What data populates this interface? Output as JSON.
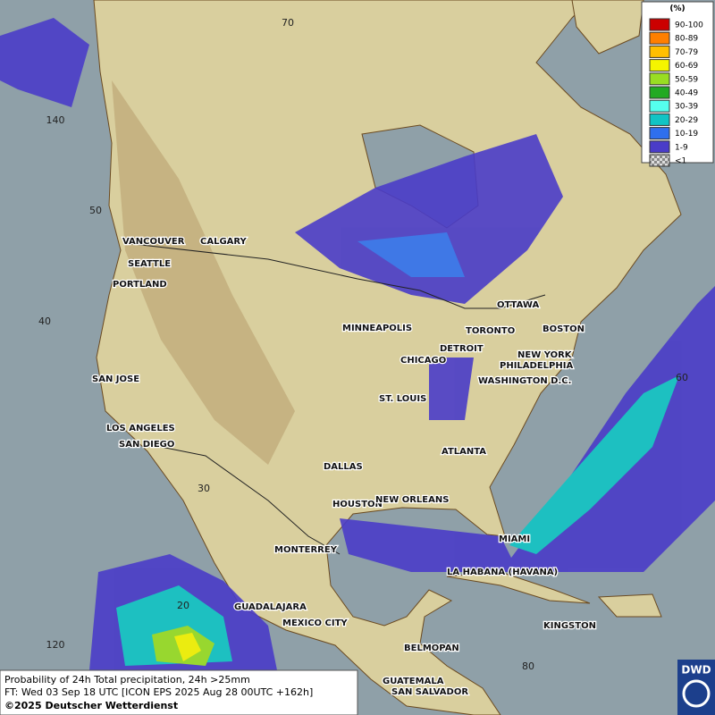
{
  "map": {
    "grid_labels": [
      "70",
      "140",
      "50",
      "40",
      "60",
      "30",
      "20",
      "120",
      "80"
    ],
    "cities": [
      "VANCOUVER",
      "CALGARY",
      "SEATTLE",
      "PORTLAND",
      "MINNEAPOLIS",
      "OTTAWA",
      "TORONTO",
      "BOSTON",
      "DETROIT",
      "NEW YORK",
      "PHILADELPHIA",
      "CHICAGO",
      "SAN JOSE",
      "WASHINGTON D.C.",
      "ST. LOUIS",
      "LOS ANGELES",
      "SAN DIEGO",
      "ATLANTA",
      "DALLAS",
      "HOUSTON",
      "NEW ORLEANS",
      "MIAMI",
      "MONTERREY",
      "LA HABANA (HAVANA)",
      "GUADALAJARA",
      "MEXICO CITY",
      "KINGSTON",
      "BELMOPAN",
      "GUATEMALA",
      "SAN SALVADOR"
    ]
  },
  "legend": {
    "title": "(%)",
    "items": [
      {
        "label": "90-100",
        "color": "#cc0000"
      },
      {
        "label": "80-89",
        "color": "#ff7f00"
      },
      {
        "label": "70-79",
        "color": "#ffbf00"
      },
      {
        "label": "60-69",
        "color": "#f5f500"
      },
      {
        "label": "50-59",
        "color": "#99dd22"
      },
      {
        "label": "40-49",
        "color": "#22aa22"
      },
      {
        "label": "30-39",
        "color": "#55ffee"
      },
      {
        "label": "20-29",
        "color": "#11c4c4"
      },
      {
        "label": "10-19",
        "color": "#2f6fee"
      },
      {
        "label": "1-9",
        "color": "#4a3cc8"
      },
      {
        "label": "<1",
        "color": "checker"
      }
    ]
  },
  "footer": {
    "lines": [
      "Probability of 24h Total precipitation, 24h >25mm",
      "FT: Wed 03 Sep 18 UTC [ICON EPS 2025 Aug 28 00UTC +162h]",
      "©2025 Deutscher Wetterdienst"
    ]
  },
  "logo": "DWD"
}
